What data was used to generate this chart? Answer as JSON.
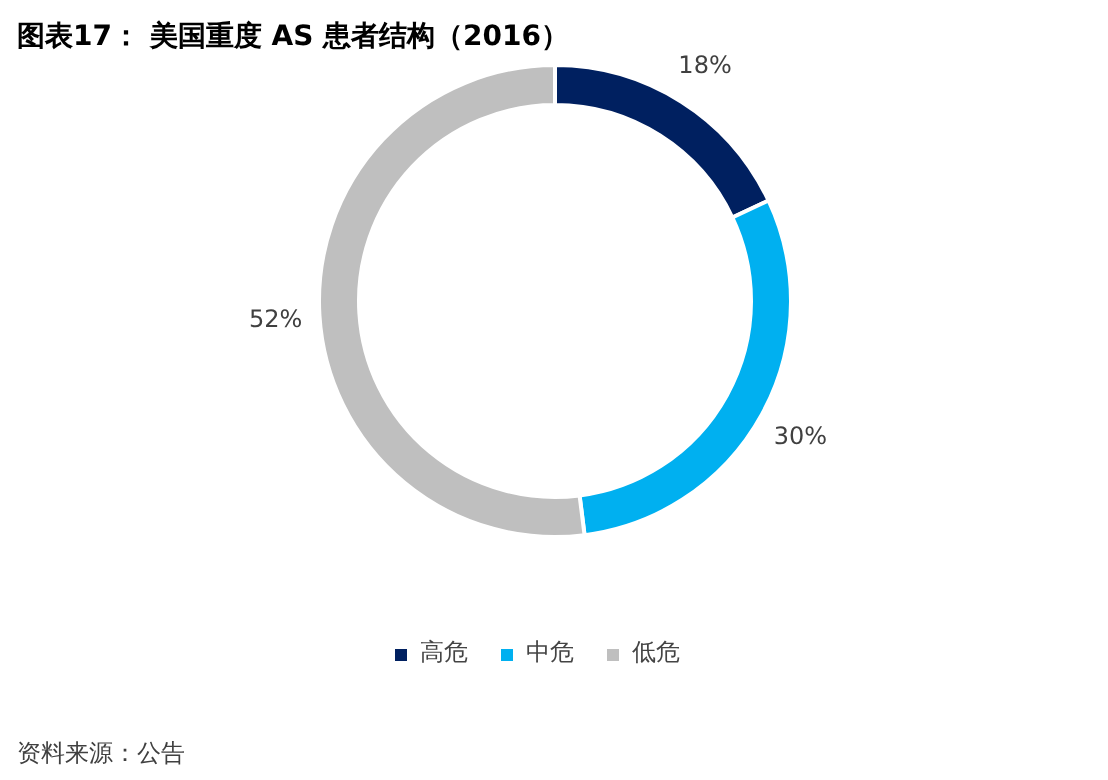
{
  "chart_data": {
    "type": "donut",
    "title": "图表17：  美国重度 AS 患者结构（2016）",
    "categories": [
      "高危",
      "中危",
      "低危"
    ],
    "values": [
      18,
      30,
      52
    ],
    "colors": [
      "#002060",
      "#00b0f0",
      "#bfbfbf"
    ],
    "value_labels": [
      "18%",
      "30%",
      "52%"
    ],
    "legend": "bottom",
    "annotations": [
      "资料来源：公告"
    ]
  }
}
